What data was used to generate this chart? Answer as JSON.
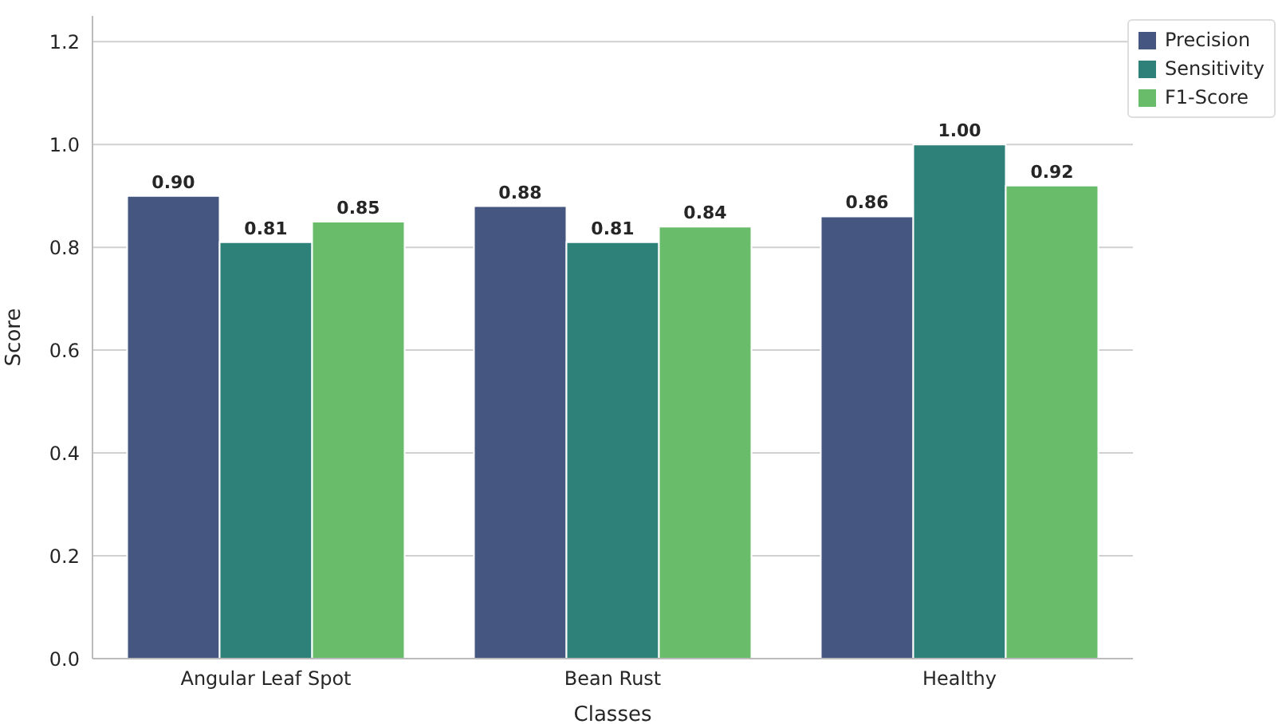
{
  "chart_data": {
    "type": "bar",
    "xlabel": "Classes",
    "ylabel": "Score",
    "categories": [
      "Angular Leaf Spot",
      "Bean Rust",
      "Healthy"
    ],
    "series": [
      {
        "name": "Precision",
        "color": "#455681",
        "values": [
          0.9,
          0.88,
          0.86
        ],
        "value_labels": [
          "0.90",
          "0.88",
          "0.86"
        ]
      },
      {
        "name": "Sensitivity",
        "color": "#2d8179",
        "values": [
          0.81,
          0.81,
          1.0
        ],
        "value_labels": [
          "0.81",
          "0.81",
          "1.00"
        ]
      },
      {
        "name": "F1-Score",
        "color": "#69bd6a",
        "values": [
          0.85,
          0.84,
          0.92
        ],
        "value_labels": [
          "0.85",
          "0.84",
          "0.92"
        ]
      }
    ],
    "ylim": [
      0,
      1.25
    ],
    "yticks": [
      {
        "value": 0,
        "label": "0.0"
      },
      0.2,
      0.4,
      0.6,
      0.8,
      {
        "value": 1,
        "label": "1.0"
      },
      1.2
    ],
    "grid": "y",
    "legend": "top right"
  }
}
